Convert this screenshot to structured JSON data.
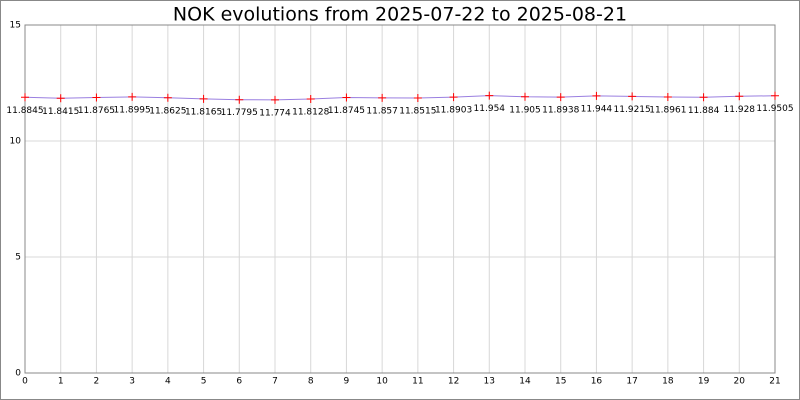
{
  "chart_data": {
    "type": "line",
    "title": "NOK evolutions from 2025-07-22 to 2025-08-21",
    "x": [
      0,
      1,
      2,
      3,
      4,
      5,
      6,
      7,
      8,
      9,
      10,
      11,
      12,
      13,
      14,
      15,
      16,
      17,
      18,
      19,
      20,
      21
    ],
    "values": [
      11.8845,
      11.8415,
      11.8765,
      11.8995,
      11.8625,
      11.8165,
      11.7795,
      11.774,
      11.8128,
      11.8745,
      11.857,
      11.8515,
      11.8903,
      11.954,
      11.905,
      11.8938,
      11.944,
      11.9215,
      11.8961,
      11.884,
      11.928,
      11.9505
    ],
    "line_color": "#9a7fe0",
    "marker_color": "#ff0000",
    "xlim": [
      0,
      21
    ],
    "xticks": [
      0,
      1,
      2,
      3,
      4,
      5,
      6,
      7,
      8,
      9,
      10,
      11,
      12,
      13,
      14,
      15,
      16,
      17,
      18,
      19,
      20,
      21
    ],
    "ylim": [
      0,
      15
    ],
    "yticks": [
      0,
      5,
      10,
      15
    ],
    "grid": true
  }
}
